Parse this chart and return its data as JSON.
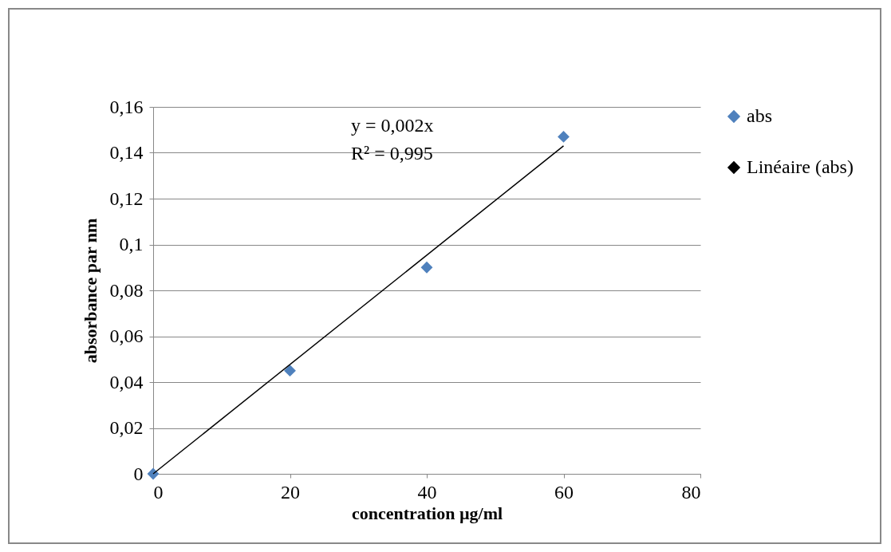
{
  "chart_data": {
    "type": "scatter",
    "xlabel": "concentration µg/ml",
    "ylabel": "absorbance par nm",
    "annotations": [
      "y = 0,002x",
      "R² = 0,995"
    ],
    "series": [
      {
        "name": "abs",
        "marker": "diamond",
        "color": "#4f81bd",
        "x": [
          0,
          20,
          40,
          60
        ],
        "values": [
          0,
          0.045,
          0.09,
          0.147
        ]
      },
      {
        "name": "Linéaire (abs)",
        "type": "line",
        "color": "#000000",
        "x": [
          0,
          60
        ],
        "values": [
          0,
          0.143
        ]
      }
    ],
    "xlim": [
      0,
      80
    ],
    "xticks": [
      0,
      20,
      40,
      60,
      80
    ],
    "ylim": [
      0,
      0.16
    ],
    "yticks": [
      0,
      {
        "value": 0.02,
        "label": "0,02"
      },
      {
        "value": 0.04,
        "label": "0,04"
      },
      {
        "value": 0.06,
        "label": "0,06"
      },
      {
        "value": 0.08,
        "label": "0,08"
      },
      {
        "value": 0.1,
        "label": "0,1"
      },
      {
        "value": 0.12,
        "label": "0,12"
      },
      {
        "value": 0.14,
        "label": "0,14"
      },
      {
        "value": 0.16,
        "label": "0,16"
      }
    ],
    "grid": "y",
    "legend": "right"
  }
}
